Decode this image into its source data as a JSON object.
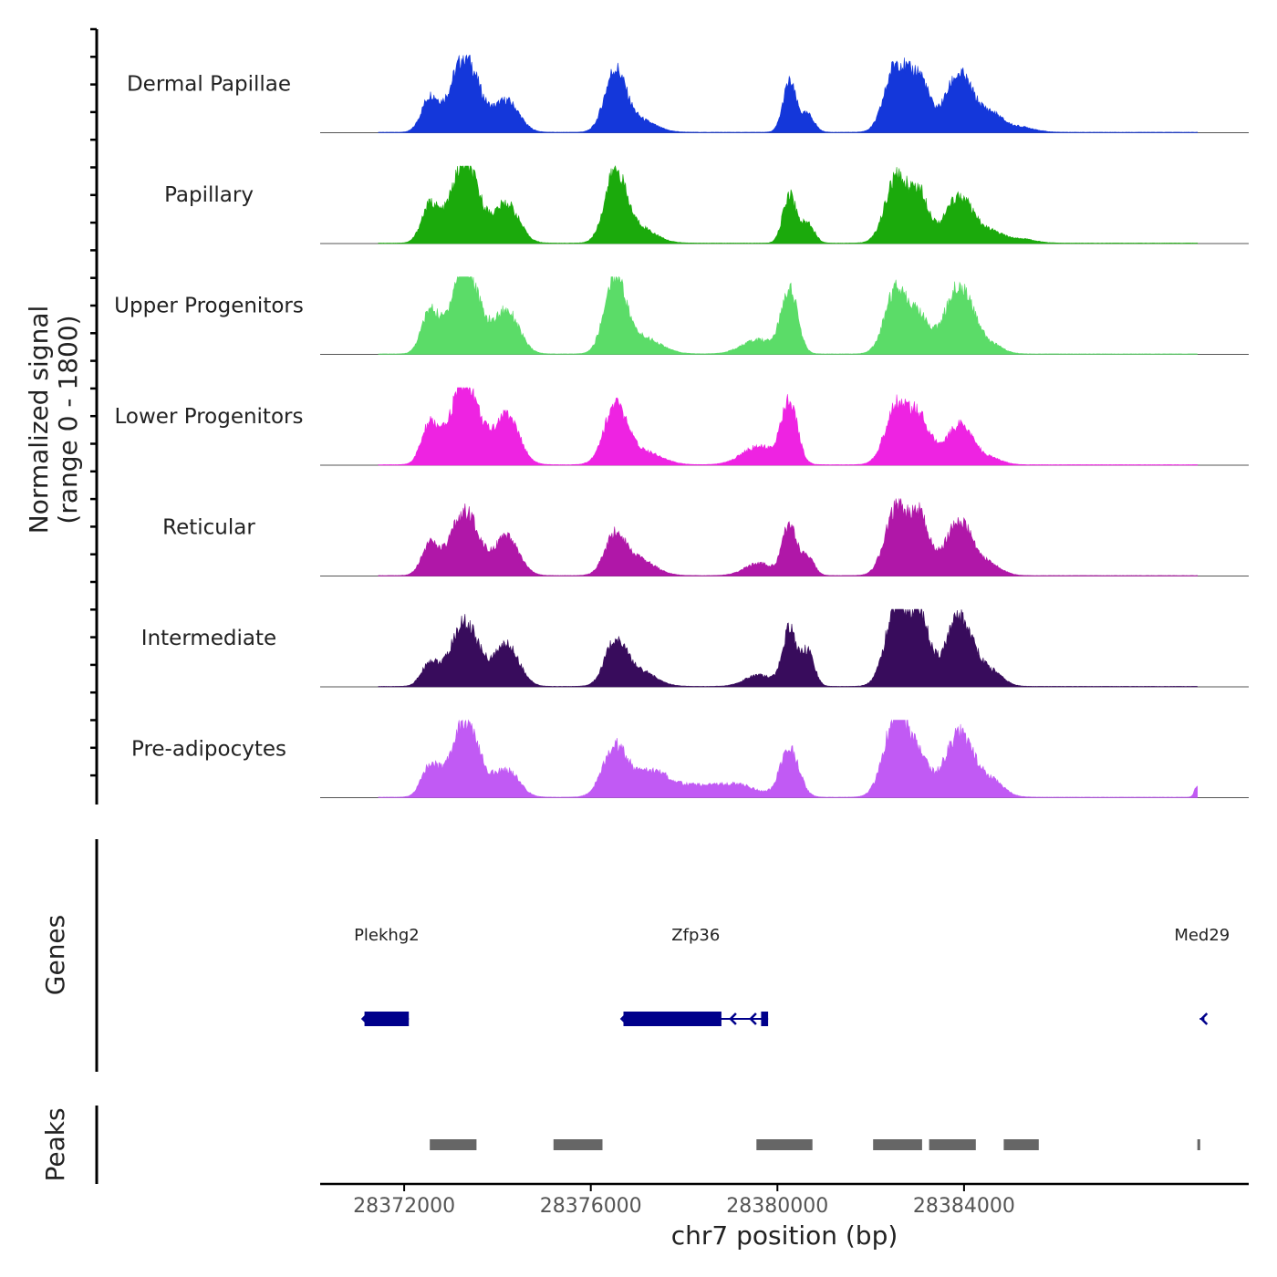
{
  "chart_data": {
    "type": "area",
    "chromosome": "chr7",
    "xlabel": "chr7 position (bp)",
    "xlim": [
      28370200,
      28390100
    ],
    "x_ticks": [
      28372000,
      28376000,
      28380000,
      28384000
    ],
    "x_tick_labels": [
      "28372000",
      "28376000",
      "28380000",
      "28384000"
    ],
    "signal_label_line1": "Normalized signal",
    "signal_label_line2": "(range 0 - 1800)",
    "ylim": [
      0,
      1800
    ],
    "genes_label": "Genes",
    "peaks_label": "Peaks",
    "series": [
      {
        "name": "Dermal Papillae",
        "color": "#1437DA",
        "peaks": [
          {
            "center": 28372550,
            "width": 180,
            "height": 780
          },
          {
            "center": 28373300,
            "width": 300,
            "height": 1760
          },
          {
            "center": 28374200,
            "width": 260,
            "height": 720
          },
          {
            "center": 28376520,
            "width": 220,
            "height": 1360
          },
          {
            "center": 28377000,
            "width": 350,
            "height": 300
          },
          {
            "center": 28380260,
            "width": 140,
            "height": 1150
          },
          {
            "center": 28380650,
            "width": 140,
            "height": 400
          },
          {
            "center": 28382550,
            "width": 240,
            "height": 1580
          },
          {
            "center": 28383050,
            "width": 200,
            "height": 1180
          },
          {
            "center": 28383900,
            "width": 300,
            "height": 1350
          },
          {
            "center": 28384600,
            "width": 240,
            "height": 380
          },
          {
            "center": 28385200,
            "width": 300,
            "height": 120
          }
        ]
      },
      {
        "name": "Papillary",
        "color": "#1BAA0C",
        "peaks": [
          {
            "center": 28372550,
            "width": 180,
            "height": 850
          },
          {
            "center": 28373300,
            "width": 300,
            "height": 1860
          },
          {
            "center": 28374200,
            "width": 260,
            "height": 900
          },
          {
            "center": 28376520,
            "width": 220,
            "height": 1560
          },
          {
            "center": 28377000,
            "width": 350,
            "height": 380
          },
          {
            "center": 28380260,
            "width": 140,
            "height": 1140
          },
          {
            "center": 28380650,
            "width": 140,
            "height": 460
          },
          {
            "center": 28382550,
            "width": 240,
            "height": 1500
          },
          {
            "center": 28383050,
            "width": 200,
            "height": 1080
          },
          {
            "center": 28383900,
            "width": 300,
            "height": 1080
          },
          {
            "center": 28384600,
            "width": 240,
            "height": 220
          },
          {
            "center": 28385200,
            "width": 300,
            "height": 100
          }
        ]
      },
      {
        "name": "Upper Progenitors",
        "color": "#5BDC68",
        "peaks": [
          {
            "center": 28372550,
            "width": 180,
            "height": 950
          },
          {
            "center": 28373300,
            "width": 300,
            "height": 2020
          },
          {
            "center": 28374200,
            "width": 260,
            "height": 1000
          },
          {
            "center": 28376520,
            "width": 220,
            "height": 1760
          },
          {
            "center": 28377100,
            "width": 380,
            "height": 380
          },
          {
            "center": 28379600,
            "width": 360,
            "height": 320
          },
          {
            "center": 28380260,
            "width": 170,
            "height": 1500
          },
          {
            "center": 28382550,
            "width": 240,
            "height": 1520
          },
          {
            "center": 28383050,
            "width": 220,
            "height": 760
          },
          {
            "center": 28383900,
            "width": 300,
            "height": 1600
          },
          {
            "center": 28384600,
            "width": 240,
            "height": 180
          }
        ]
      },
      {
        "name": "Lower Progenitors",
        "color": "#EE23E2",
        "peaks": [
          {
            "center": 28372550,
            "width": 180,
            "height": 900
          },
          {
            "center": 28373300,
            "width": 300,
            "height": 1980
          },
          {
            "center": 28374200,
            "width": 260,
            "height": 1160
          },
          {
            "center": 28376520,
            "width": 240,
            "height": 1300
          },
          {
            "center": 28377100,
            "width": 380,
            "height": 320
          },
          {
            "center": 28379600,
            "width": 360,
            "height": 420
          },
          {
            "center": 28380260,
            "width": 170,
            "height": 1400
          },
          {
            "center": 28382550,
            "width": 240,
            "height": 1350
          },
          {
            "center": 28383050,
            "width": 220,
            "height": 1050
          },
          {
            "center": 28383900,
            "width": 300,
            "height": 920
          },
          {
            "center": 28384600,
            "width": 240,
            "height": 120
          }
        ]
      },
      {
        "name": "Reticular",
        "color": "#B017A8",
        "peaks": [
          {
            "center": 28372550,
            "width": 180,
            "height": 700
          },
          {
            "center": 28373300,
            "width": 300,
            "height": 1480
          },
          {
            "center": 28374200,
            "width": 260,
            "height": 870
          },
          {
            "center": 28376520,
            "width": 220,
            "height": 860
          },
          {
            "center": 28377000,
            "width": 350,
            "height": 380
          },
          {
            "center": 28379600,
            "width": 300,
            "height": 280
          },
          {
            "center": 28380260,
            "width": 150,
            "height": 1180
          },
          {
            "center": 28380650,
            "width": 140,
            "height": 420
          },
          {
            "center": 28382550,
            "width": 240,
            "height": 1550
          },
          {
            "center": 28383050,
            "width": 200,
            "height": 1300
          },
          {
            "center": 28383900,
            "width": 300,
            "height": 1260
          },
          {
            "center": 28384600,
            "width": 240,
            "height": 200
          }
        ]
      },
      {
        "name": "Intermediate",
        "color": "#380C5C",
        "peaks": [
          {
            "center": 28372550,
            "width": 180,
            "height": 520
          },
          {
            "center": 28373300,
            "width": 300,
            "height": 1480
          },
          {
            "center": 28374200,
            "width": 260,
            "height": 960
          },
          {
            "center": 28376520,
            "width": 220,
            "height": 960
          },
          {
            "center": 28377000,
            "width": 350,
            "height": 380
          },
          {
            "center": 28379600,
            "width": 300,
            "height": 260
          },
          {
            "center": 28380260,
            "width": 150,
            "height": 1300
          },
          {
            "center": 28380650,
            "width": 140,
            "height": 800
          },
          {
            "center": 28382550,
            "width": 240,
            "height": 1780
          },
          {
            "center": 28383050,
            "width": 200,
            "height": 1600
          },
          {
            "center": 28383900,
            "width": 300,
            "height": 1600
          },
          {
            "center": 28384600,
            "width": 240,
            "height": 300
          }
        ]
      },
      {
        "name": "Pre-adipocytes",
        "color": "#C15AF4",
        "peaks": [
          {
            "center": 28372550,
            "width": 180,
            "height": 700
          },
          {
            "center": 28373300,
            "width": 300,
            "height": 1760
          },
          {
            "center": 28374200,
            "width": 260,
            "height": 620
          },
          {
            "center": 28376520,
            "width": 260,
            "height": 1150
          },
          {
            "center": 28377300,
            "width": 360,
            "height": 580
          },
          {
            "center": 28378300,
            "width": 500,
            "height": 260
          },
          {
            "center": 28379200,
            "width": 400,
            "height": 240
          },
          {
            "center": 28380260,
            "width": 200,
            "height": 1120
          },
          {
            "center": 28382550,
            "width": 260,
            "height": 1900
          },
          {
            "center": 28383050,
            "width": 220,
            "height": 780
          },
          {
            "center": 28383900,
            "width": 300,
            "height": 1500
          },
          {
            "center": 28384600,
            "width": 260,
            "height": 360
          },
          {
            "center": 28389000,
            "width": 60,
            "height": 260
          }
        ]
      }
    ],
    "genes": [
      {
        "name": "Plekhg2",
        "start": 28371150,
        "end": 28372100,
        "strand": "-",
        "exons": [
          [
            28371150,
            28372100
          ]
        ]
      },
      {
        "name": "Zfp36",
        "start": 28376700,
        "end": 28379800,
        "strand": "-",
        "exons": [
          [
            28376700,
            28378800
          ],
          [
            28379650,
            28379800
          ]
        ]
      },
      {
        "name": "Med29",
        "start": 28389050,
        "end": 28389150,
        "strand": "-",
        "exons": []
      }
    ],
    "peaks": [
      [
        28372550,
        28373550
      ],
      [
        28375200,
        28376250
      ],
      [
        28379550,
        28380750
      ],
      [
        28382050,
        28383100
      ],
      [
        28383250,
        28384250
      ],
      [
        28384850,
        28385600
      ],
      [
        28389000,
        28389060
      ]
    ]
  }
}
